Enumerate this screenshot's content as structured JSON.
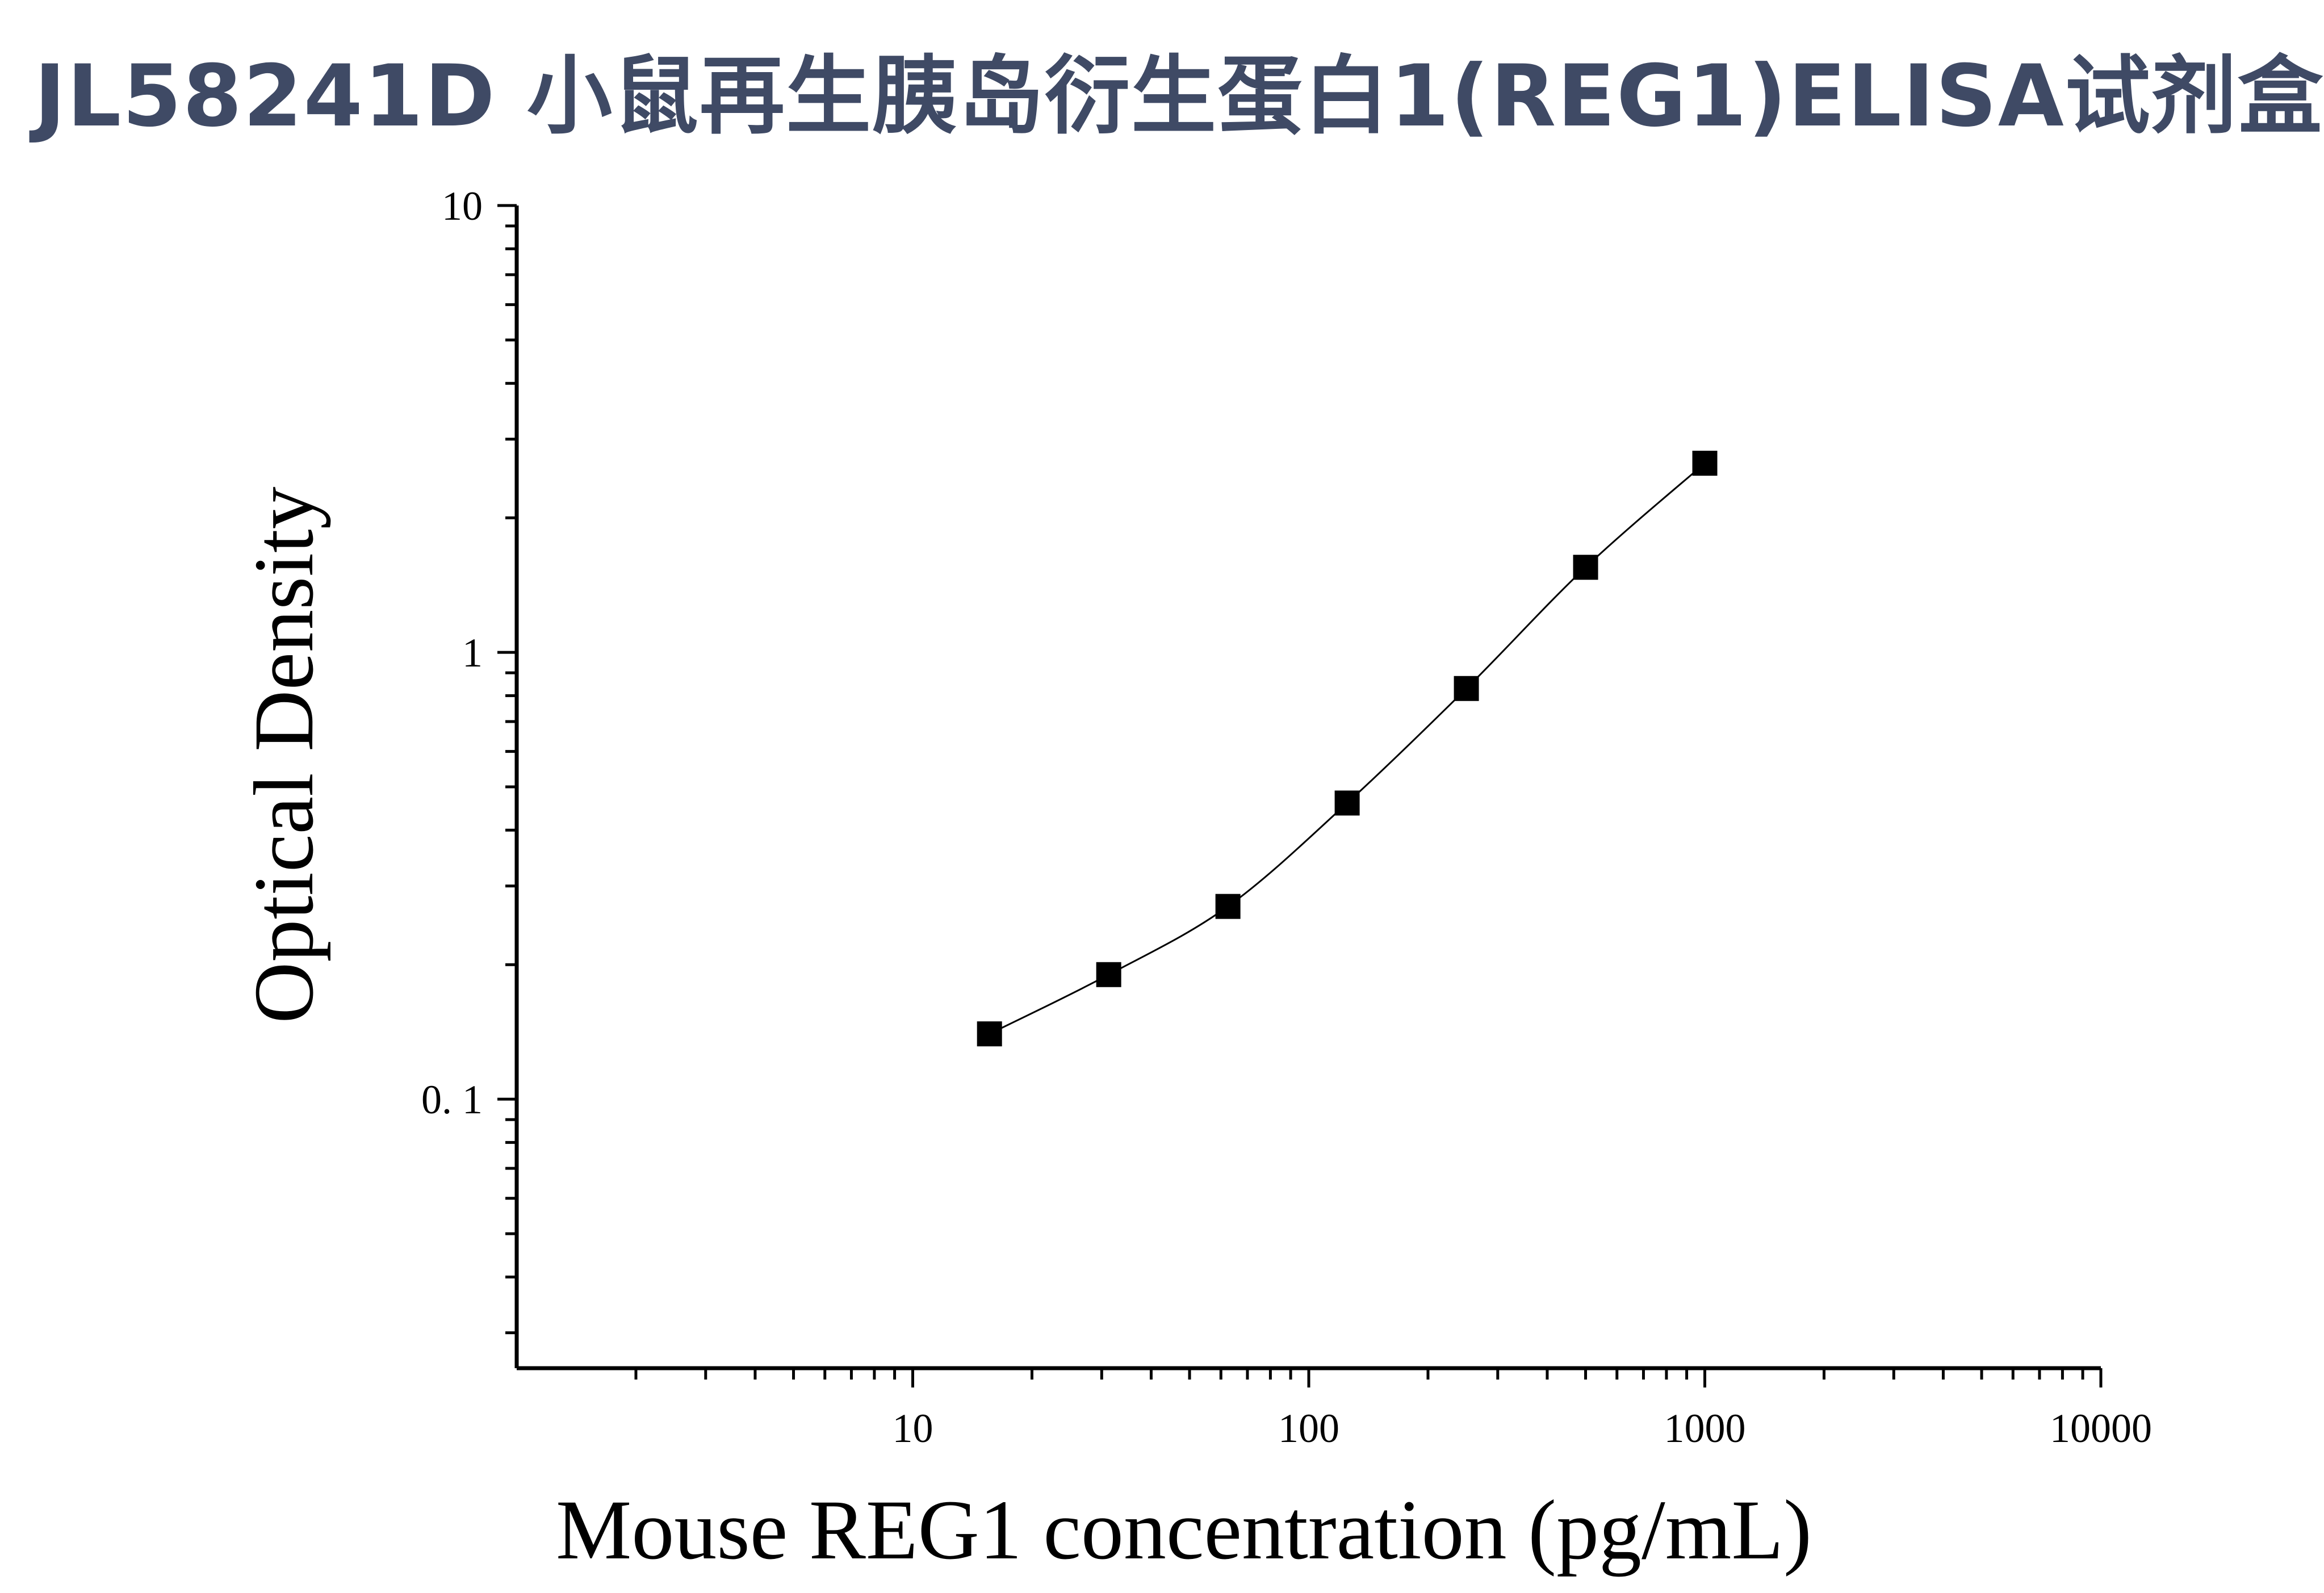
{
  "title": "JL58241D 小鼠再生胰岛衍生蛋白1(REG1)ELISA试剂盒",
  "colors": {
    "title": "#3f4a65",
    "axis": "#000000",
    "marker": "#000000",
    "background": "#ffffff"
  },
  "chart_data": {
    "type": "scatter",
    "xlabel": "Mouse REG1 concentration (pg/mL)",
    "ylabel": "Optical Density",
    "xscale": "log",
    "yscale": "log",
    "xlim": [
      1,
      10000
    ],
    "ylim": [
      0.025,
      10
    ],
    "xticks": [
      10,
      100,
      1000,
      10000
    ],
    "xtick_labels": [
      "10",
      "100",
      "1000",
      "10000"
    ],
    "yticks": [
      0.1,
      1,
      10
    ],
    "ytick_labels": [
      "0. 1",
      "1",
      "10"
    ],
    "grid": false,
    "marker": "square",
    "fit_line": true,
    "series": [
      {
        "x": [
          15.625,
          31.25,
          62.5,
          125,
          250,
          500,
          1000
        ],
        "y": [
          0.14,
          0.19,
          0.27,
          0.46,
          0.83,
          1.55,
          2.65
        ]
      }
    ]
  }
}
